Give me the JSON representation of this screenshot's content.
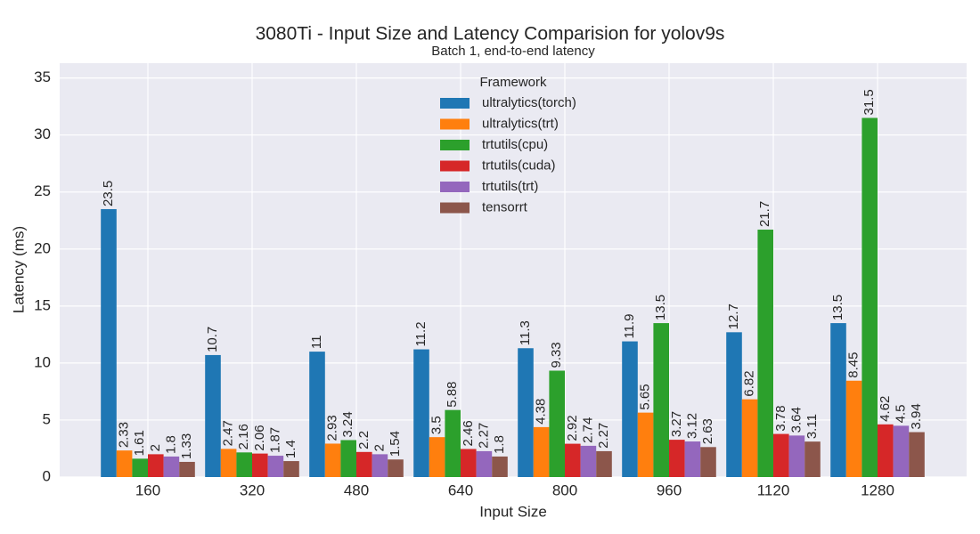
{
  "chart_data": {
    "type": "bar",
    "title": "3080Ti - Input Size and Latency Comparision for yolov9s",
    "subtitle": "Batch 1, end-to-end latency",
    "x_label": "Input Size",
    "y_label": "Latency (ms)",
    "legend_title": "Framework",
    "legend_position": "upper center",
    "grid": true,
    "categories": [
      "160",
      "320",
      "480",
      "640",
      "800",
      "960",
      "1120",
      "1280"
    ],
    "series": [
      {
        "name": "ultralytics(torch)",
        "color": "#1f77b4",
        "values": [
          23.5,
          10.7,
          11,
          11.2,
          11.3,
          11.9,
          12.7,
          13.5
        ]
      },
      {
        "name": "ultralytics(trt)",
        "color": "#ff7f0e",
        "values": [
          2.33,
          2.47,
          2.93,
          3.5,
          4.38,
          5.65,
          6.82,
          8.45
        ]
      },
      {
        "name": "trtutils(cpu)",
        "color": "#2ca02c",
        "values": [
          1.61,
          2.16,
          3.24,
          5.88,
          9.33,
          13.5,
          21.7,
          31.5
        ]
      },
      {
        "name": "trtutils(cuda)",
        "color": "#d62728",
        "values": [
          2,
          2.06,
          2.2,
          2.46,
          2.92,
          3.27,
          3.78,
          4.62
        ]
      },
      {
        "name": "trtutils(trt)",
        "color": "#9467bd",
        "values": [
          1.8,
          1.87,
          2,
          2.27,
          2.74,
          3.12,
          3.64,
          4.5
        ]
      },
      {
        "name": "tensorrt",
        "color": "#8c564b",
        "values": [
          1.33,
          1.4,
          1.54,
          1.8,
          2.27,
          2.63,
          3.11,
          3.94
        ]
      }
    ],
    "ylim": [
      0,
      36.3
    ],
    "yticks": [
      0,
      5,
      10,
      15,
      20,
      25,
      30,
      35
    ]
  }
}
